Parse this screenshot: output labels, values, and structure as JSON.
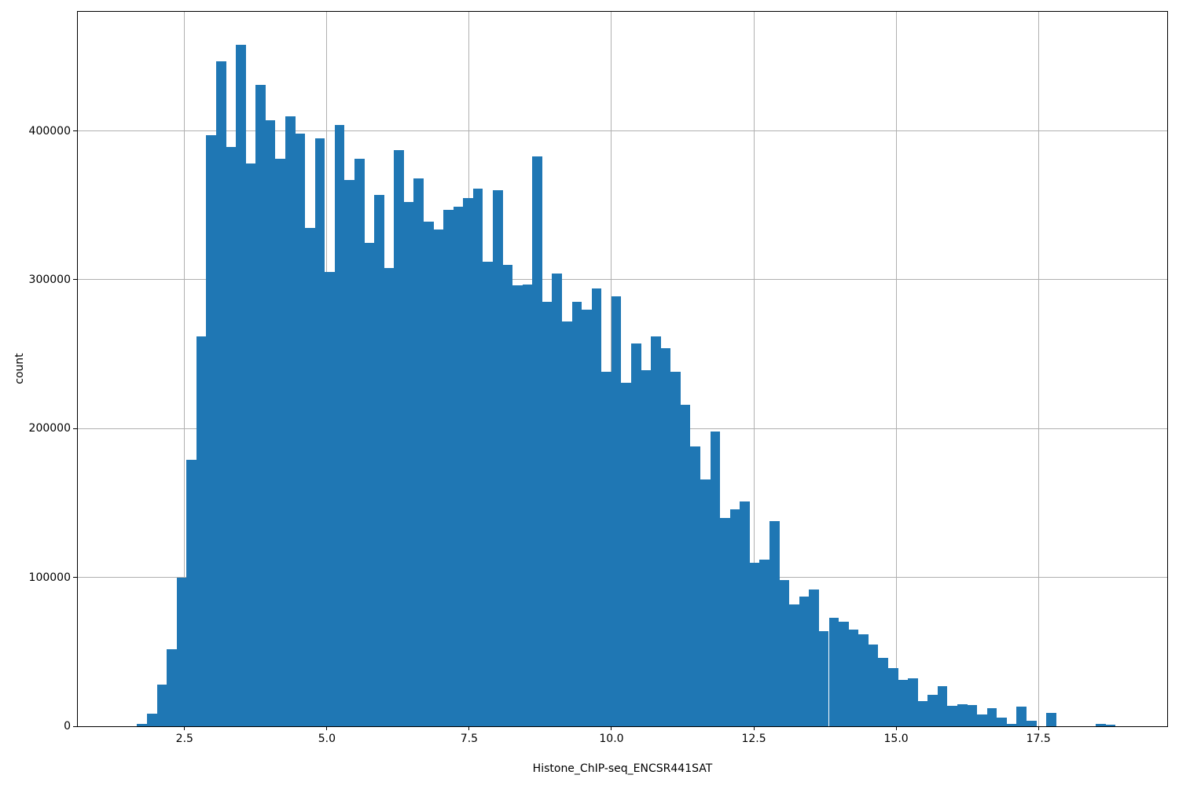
{
  "figure": {
    "background_color": "#ffffff",
    "bar_color": "#1f77b4",
    "grid_color": "#b0b0b0",
    "spine_color": "#000000",
    "text_color": "#000000"
  },
  "chart_data": {
    "type": "bar",
    "subtype": "histogram",
    "title": "",
    "xlabel": "Histone_ChIP-seq_ENCSR441SAT",
    "ylabel": "count",
    "grid": true,
    "legend_position": "none",
    "xlim": [
      0.625,
      19.762
    ],
    "ylim": [
      0,
      480000
    ],
    "x_ticks": [
      2.5,
      5.0,
      7.5,
      10.0,
      12.5,
      15.0,
      17.5
    ],
    "x_tick_labels": [
      "2.5",
      "5.0",
      "7.5",
      "10.0",
      "12.5",
      "15.0",
      "17.5"
    ],
    "y_ticks": [
      0,
      100000,
      200000,
      300000,
      400000
    ],
    "y_tick_labels": [
      "0",
      "100000",
      "200000",
      "300000",
      "400000"
    ],
    "bin_start": 1.666,
    "bin_width": 0.1736,
    "n_bins": 100,
    "counts": [
      1500,
      8500,
      28000,
      51500,
      100000,
      179000,
      262000,
      397000,
      447000,
      389000,
      458000,
      378000,
      431000,
      407000,
      381000,
      410000,
      398000,
      335000,
      395000,
      305000,
      404000,
      367000,
      381000,
      325000,
      357000,
      308000,
      387000,
      352000,
      368000,
      339000,
      334000,
      347000,
      349000,
      355000,
      361000,
      312000,
      360000,
      310000,
      296000,
      297000,
      383000,
      285000,
      304000,
      272000,
      285000,
      280000,
      294000,
      238000,
      289000,
      231000,
      257000,
      239000,
      262000,
      254000,
      238000,
      216000,
      188000,
      166000,
      198000,
      140000,
      146000,
      151000,
      110000,
      112000,
      138000,
      98000,
      82000,
      87000,
      92000,
      64000,
      73000,
      70000,
      65000,
      62000,
      55000,
      46000,
      39000,
      31000,
      32000,
      17000,
      21000,
      27000,
      14000,
      15000,
      14500,
      8000,
      12000,
      6000,
      1500,
      13000,
      3500,
      0,
      9000,
      0,
      0,
      0,
      0,
      1700,
      900,
      0
    ]
  }
}
